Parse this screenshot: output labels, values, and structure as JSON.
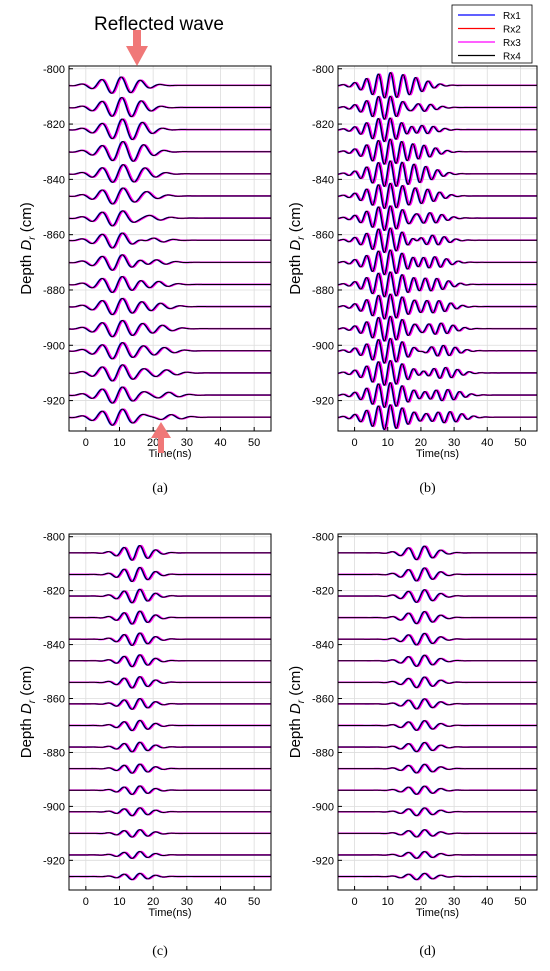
{
  "annotation": {
    "text": "Reflected wave",
    "arrow_color": "#f07878"
  },
  "legend": {
    "placement": "top-right",
    "entries": [
      {
        "label": "Rx1",
        "color": "#0000ff"
      },
      {
        "label": "Rx2",
        "color": "#ff0000"
      },
      {
        "label": "Rx3",
        "color": "#ff00ff"
      },
      {
        "label": "Rx4",
        "color": "#000000"
      }
    ]
  },
  "chart_data": [
    {
      "type": "line",
      "caption": "(a)",
      "xlabel": "Time(ns)",
      "ylabel_main": "Depth ",
      "ylabel_var": "D",
      "ylabel_sub": "r",
      "xlim": [
        -5,
        55
      ],
      "ylim": [
        -931,
        -799
      ],
      "xticks": [
        0,
        10,
        20,
        30,
        40,
        50
      ],
      "yticks": [
        -800,
        -820,
        -840,
        -860,
        -880,
        -900,
        -920
      ],
      "grid": true,
      "trace_depths": [
        -806,
        -814,
        -822,
        -830,
        -838,
        -846,
        -854,
        -862,
        -870,
        -878,
        -886,
        -894,
        -902,
        -910,
        -918,
        -926
      ],
      "pulse": {
        "center_ns": 9.5,
        "period_ns": 6.2,
        "amp_depth": 3.0,
        "cycles": 4
      },
      "reflection": {
        "center_start_ns": 14,
        "center_end_ns": 24,
        "amp_start": 1.6,
        "amp_end": 1.0
      }
    },
    {
      "type": "line",
      "caption": "(b)",
      "xlabel": "Time(ns)",
      "ylabel_main": "Depth ",
      "ylabel_var": "D",
      "ylabel_sub": "r",
      "xlim": [
        -5,
        55
      ],
      "ylim": [
        -931,
        -799
      ],
      "xticks": [
        0,
        10,
        20,
        30,
        40,
        50
      ],
      "yticks": [
        -800,
        -820,
        -840,
        -860,
        -880,
        -900,
        -920
      ],
      "grid": true,
      "trace_depths": [
        -806,
        -814,
        -822,
        -830,
        -838,
        -846,
        -854,
        -862,
        -870,
        -878,
        -886,
        -894,
        -902,
        -910,
        -918,
        -926
      ],
      "pulse": {
        "center_ns": 10,
        "period_ns": 3.6,
        "amp_depth": 4.5,
        "cycles": 7
      },
      "reflection": {
        "center_start_ns": 18,
        "center_end_ns": 28,
        "amp_start": 2.2,
        "amp_end": 2.0
      }
    },
    {
      "type": "line",
      "caption": "(c)",
      "xlabel": "Time(ns)",
      "ylabel_main": "Depth ",
      "ylabel_var": "D",
      "ylabel_sub": "r",
      "xlim": [
        -5,
        55
      ],
      "ylim": [
        -931,
        -799
      ],
      "xticks": [
        0,
        10,
        20,
        30,
        40,
        50
      ],
      "yticks": [
        -800,
        -820,
        -840,
        -860,
        -880,
        -900,
        -920
      ],
      "grid": true,
      "trace_depths": [
        -806,
        -814,
        -822,
        -830,
        -838,
        -846,
        -854,
        -862,
        -870,
        -878,
        -886,
        -894,
        -902,
        -910,
        -918,
        -926
      ],
      "pulse": {
        "center_ns": 15,
        "period_ns": 4.8,
        "amp_start": 2.8,
        "amp_end": 1.2,
        "cycles": 4
      },
      "reflection": null
    },
    {
      "type": "line",
      "caption": "(d)",
      "xlabel": "Time(ns)",
      "ylabel_main": "Depth ",
      "ylabel_var": "D",
      "ylabel_sub": "r",
      "xlim": [
        -5,
        55
      ],
      "ylim": [
        -931,
        -799
      ],
      "xticks": [
        0,
        10,
        20,
        30,
        40,
        50
      ],
      "yticks": [
        -800,
        -820,
        -840,
        -860,
        -880,
        -900,
        -920
      ],
      "grid": true,
      "trace_depths": [
        -806,
        -814,
        -822,
        -830,
        -838,
        -846,
        -854,
        -862,
        -870,
        -878,
        -886,
        -894,
        -902,
        -910,
        -918,
        -926
      ],
      "pulse": {
        "center_ns": 20,
        "period_ns": 5.0,
        "amp_start": 2.6,
        "amp_end": 1.2,
        "cycles": 4
      },
      "reflection": null
    }
  ]
}
